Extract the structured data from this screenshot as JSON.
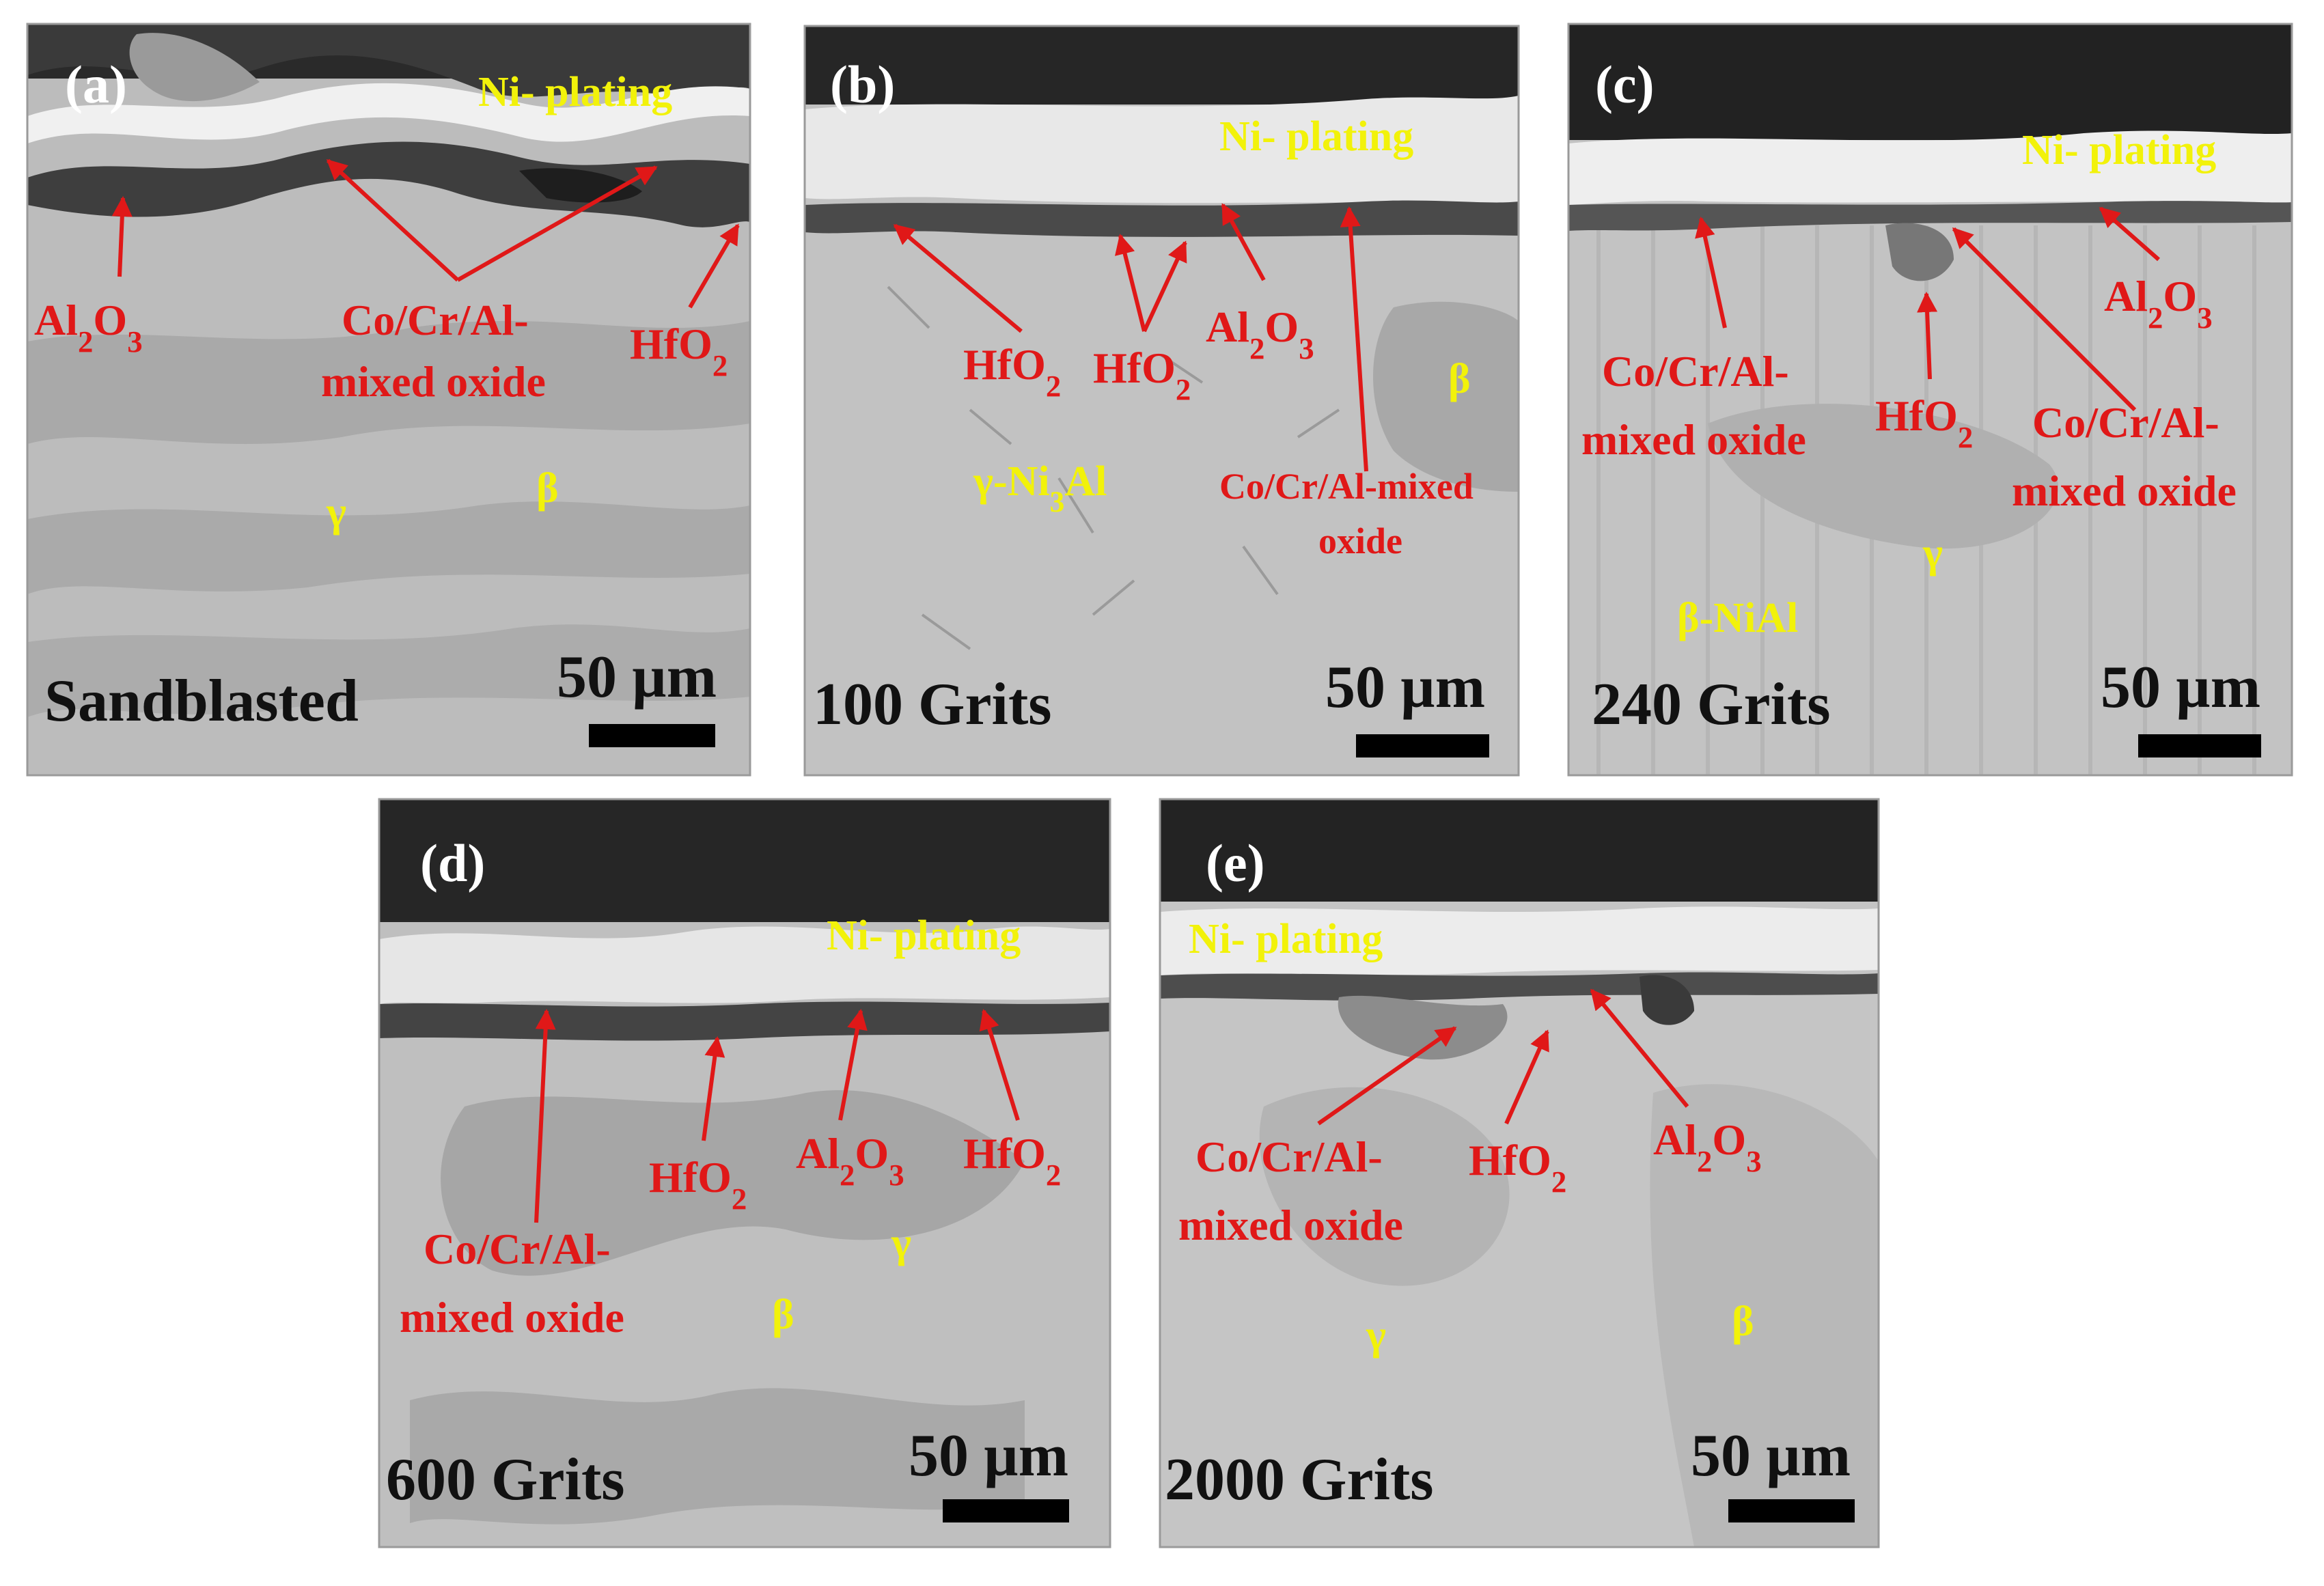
{
  "colors": {
    "annotation": "#e01818",
    "phase_label": "#f2f20a",
    "caption": "#111111",
    "panel_label": "#ffffff"
  },
  "panels": [
    {
      "id": "a",
      "label": "(a)",
      "condition": "Sandblasted",
      "scale": "50 µm",
      "yellow": [
        "Ni- plating",
        "β",
        "γ"
      ],
      "red": [
        "Al2O3",
        "Co/Cr/Al-",
        "mixed oxide",
        "HfO2"
      ]
    },
    {
      "id": "b",
      "label": "(b)",
      "condition": "100 Grits",
      "scale": "50 µm",
      "yellow": [
        "Ni- plating",
        "β",
        "γ-Ni3Al"
      ],
      "red": [
        "HfO2",
        "HfO2",
        "Al2O3",
        "Co/Cr/Al-mixed",
        "oxide"
      ]
    },
    {
      "id": "c",
      "label": "(c)",
      "condition": "240 Grits",
      "scale": "50 µm",
      "yellow": [
        "Ni- plating",
        "γ",
        "β-NiAl"
      ],
      "red": [
        "Co/Cr/Al-",
        "mixed oxide",
        "HfO2",
        "Al2O3",
        "Co/Cr/Al-",
        "mixed oxide"
      ]
    },
    {
      "id": "d",
      "label": "(d)",
      "condition": "600 Grits",
      "scale": "50 µm",
      "yellow": [
        "Ni- plating",
        "γ",
        "β"
      ],
      "red": [
        "HfO2",
        "Al2O3",
        "HfO2",
        "Co/Cr/Al-",
        "mixed oxide"
      ]
    },
    {
      "id": "e",
      "label": "(e)",
      "condition": "2000 Grits",
      "scale": "50 µm",
      "yellow": [
        "Ni- plating",
        "γ",
        "β"
      ],
      "red": [
        "Co/Cr/Al-",
        "mixed oxide",
        "HfO2",
        "Al2O3"
      ]
    }
  ]
}
